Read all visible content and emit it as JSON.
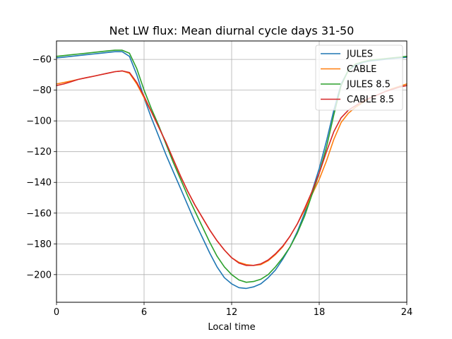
{
  "chart_data": {
    "type": "line",
    "title": "Net LW flux: Mean diurnal cycle days 31-50",
    "xlabel": "Local time",
    "ylabel": "",
    "xlim": [
      0,
      24
    ],
    "ylim": [
      -218,
      -48
    ],
    "xticks": [
      0,
      6,
      12,
      18,
      24
    ],
    "yticks": [
      -200,
      -180,
      -160,
      -140,
      -120,
      -100,
      -80,
      -60
    ],
    "grid": true,
    "legend_position": "top-right",
    "x": [
      0,
      0.5,
      1,
      1.5,
      2,
      2.5,
      3,
      3.5,
      4,
      4.5,
      5,
      5.5,
      6,
      6.5,
      7,
      7.5,
      8,
      8.5,
      9,
      9.5,
      10,
      10.5,
      11,
      11.5,
      12,
      12.5,
      13,
      13.5,
      14,
      14.5,
      15,
      15.5,
      16,
      16.5,
      17,
      17.5,
      18,
      18.5,
      19,
      19.5,
      20,
      20.5,
      21,
      21.5,
      22,
      22.5,
      23,
      23.5,
      24
    ],
    "series": [
      {
        "name": "JULES",
        "color": "#1f77b4",
        "values": [
          -59,
          -58.5,
          -58,
          -57.5,
          -57,
          -56.5,
          -56,
          -55.5,
          -55,
          -55,
          -58,
          -70,
          -85,
          -98,
          -110,
          -122,
          -133,
          -144,
          -155,
          -166,
          -176,
          -186,
          -195,
          -202,
          -206,
          -208.5,
          -209,
          -208,
          -206,
          -202,
          -197,
          -190,
          -182,
          -172,
          -160,
          -146,
          -131,
          -113,
          -93,
          -76,
          -67,
          -64,
          -62,
          -61,
          -60.5,
          -60,
          -59.5,
          -59,
          -58.5
        ]
      },
      {
        "name": "CABLE",
        "color": "#ff7f0e",
        "values": [
          -76,
          -75,
          -74,
          -73,
          -72,
          -71,
          -70,
          -69,
          -68,
          -67.5,
          -69,
          -76,
          -85,
          -94,
          -104,
          -114,
          -125,
          -136,
          -146,
          -155,
          -163,
          -171,
          -178,
          -184,
          -189,
          -192,
          -193.5,
          -194,
          -193.5,
          -191,
          -187,
          -182,
          -175,
          -167,
          -158,
          -148,
          -138,
          -126,
          -112,
          -101,
          -95,
          -91,
          -88,
          -85,
          -83,
          -81,
          -79,
          -77.5,
          -76
        ]
      },
      {
        "name": "JULES 8.5",
        "color": "#2ca02c",
        "values": [
          -58,
          -57.5,
          -57,
          -56.5,
          -56,
          -55.5,
          -55,
          -54.5,
          -54,
          -54,
          -56,
          -66,
          -80,
          -92,
          -103,
          -115,
          -127,
          -138,
          -149,
          -159,
          -169,
          -179,
          -188,
          -195,
          -200,
          -203.5,
          -205,
          -204.5,
          -203,
          -200,
          -195,
          -189,
          -182,
          -173,
          -162,
          -148,
          -134,
          -117,
          -96,
          -77,
          -67,
          -63,
          -61.5,
          -60.5,
          -60,
          -59.5,
          -59,
          -58.5,
          -58
        ]
      },
      {
        "name": "CABLE 8.5",
        "color": "#d62728",
        "values": [
          -77,
          -76,
          -74.5,
          -73,
          -72,
          -71,
          -70,
          -69,
          -68,
          -67.5,
          -68.5,
          -75,
          -84,
          -94,
          -104,
          -114,
          -125,
          -136,
          -146,
          -155,
          -163,
          -171,
          -178,
          -184,
          -189,
          -192.5,
          -194,
          -194,
          -193,
          -190.5,
          -186.5,
          -181.5,
          -175,
          -167,
          -157,
          -146,
          -134,
          -120,
          -107,
          -98,
          -93,
          -90,
          -87,
          -85,
          -83,
          -81,
          -79.5,
          -78,
          -77
        ]
      }
    ]
  }
}
